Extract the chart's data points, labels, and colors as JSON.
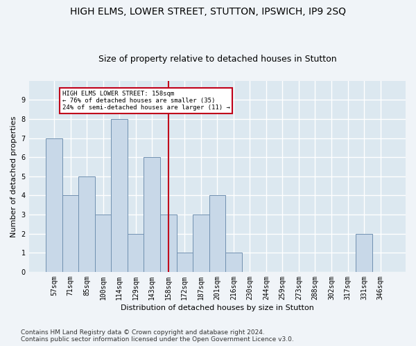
{
  "title": "HIGH ELMS, LOWER STREET, STUTTON, IPSWICH, IP9 2SQ",
  "subtitle": "Size of property relative to detached houses in Stutton",
  "xlabel": "Distribution of detached houses by size in Stutton",
  "ylabel": "Number of detached properties",
  "categories": [
    "57sqm",
    "71sqm",
    "85sqm",
    "100sqm",
    "114sqm",
    "129sqm",
    "143sqm",
    "158sqm",
    "172sqm",
    "187sqm",
    "201sqm",
    "216sqm",
    "230sqm",
    "244sqm",
    "259sqm",
    "273sqm",
    "288sqm",
    "302sqm",
    "317sqm",
    "331sqm",
    "346sqm"
  ],
  "values": [
    7,
    4,
    5,
    3,
    8,
    2,
    6,
    3,
    1,
    3,
    4,
    1,
    0,
    0,
    0,
    0,
    0,
    0,
    0,
    2,
    0
  ],
  "bar_color": "#c8d8e8",
  "bar_edge_color": "#7090b0",
  "highlight_index": 7,
  "highlight_line_color": "#c0001a",
  "annotation_text": "HIGH ELMS LOWER STREET: 158sqm\n← 76% of detached houses are smaller (35)\n24% of semi-detached houses are larger (11) →",
  "annotation_box_color": "#ffffff",
  "annotation_box_edge": "#c0001a",
  "ylim": [
    0,
    10
  ],
  "yticks": [
    0,
    1,
    2,
    3,
    4,
    5,
    6,
    7,
    8,
    9
  ],
  "footer": "Contains HM Land Registry data © Crown copyright and database right 2024.\nContains public sector information licensed under the Open Government Licence v3.0.",
  "bg_color": "#dce8f0",
  "fig_color": "#f0f4f8",
  "grid_color": "#ffffff",
  "title_fontsize": 10,
  "subtitle_fontsize": 9,
  "axis_label_fontsize": 8,
  "tick_fontsize": 7,
  "footer_fontsize": 6.5
}
